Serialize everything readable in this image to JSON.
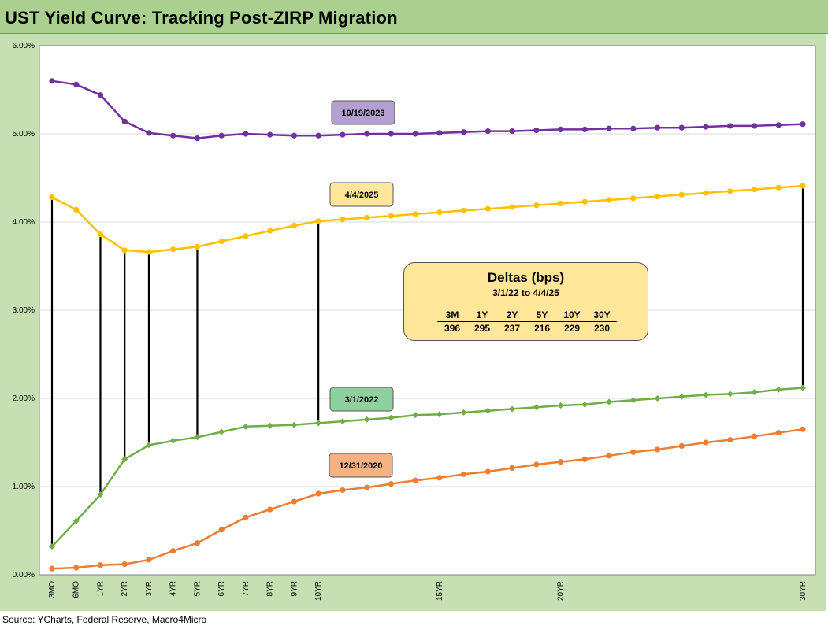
{
  "title": "UST Yield Curve: Tracking Post-ZIRP Migration",
  "source": "Source: YCharts, Federal Reserve, Macro4Micro",
  "chart_data": {
    "type": "line",
    "ylim": [
      0,
      6
    ],
    "yticks": [
      "0.00%",
      "1.00%",
      "2.00%",
      "3.00%",
      "4.00%",
      "5.00%",
      "6.00%"
    ],
    "xlabels": [
      {
        "i": 0,
        "label": "3MO"
      },
      {
        "i": 1,
        "label": "6MO"
      },
      {
        "i": 2,
        "label": "1YR"
      },
      {
        "i": 3,
        "label": "2YR"
      },
      {
        "i": 4,
        "label": "3YR"
      },
      {
        "i": 5,
        "label": "4YR"
      },
      {
        "i": 6,
        "label": "5YR"
      },
      {
        "i": 7,
        "label": "6YR"
      },
      {
        "i": 8,
        "label": "7YR"
      },
      {
        "i": 9,
        "label": "8YR"
      },
      {
        "i": 10,
        "label": "9YR"
      },
      {
        "i": 11,
        "label": "10YR"
      },
      {
        "i": 16,
        "label": "15YR"
      },
      {
        "i": 21,
        "label": "20YR"
      },
      {
        "i": 31,
        "label": "30YR"
      }
    ],
    "series": [
      {
        "name": "10/19/2023",
        "color": "#7030a0",
        "marker": "circle",
        "values": [
          5.6,
          5.56,
          5.44,
          5.14,
          5.01,
          4.98,
          4.95,
          4.98,
          5.0,
          4.99,
          4.98,
          4.98,
          4.99,
          5.0,
          5.0,
          5.0,
          5.01,
          5.02,
          5.03,
          5.03,
          5.04,
          5.05,
          5.05,
          5.06,
          5.06,
          5.07,
          5.07,
          5.08,
          5.09,
          5.09,
          5.1,
          5.11
        ]
      },
      {
        "name": "4/4/2025",
        "color": "#ffc000",
        "marker": "circle",
        "values": [
          4.28,
          4.14,
          3.86,
          3.68,
          3.66,
          3.69,
          3.72,
          3.78,
          3.84,
          3.9,
          3.96,
          4.01,
          4.03,
          4.05,
          4.07,
          4.09,
          4.11,
          4.13,
          4.15,
          4.17,
          4.19,
          4.21,
          4.23,
          4.25,
          4.27,
          4.29,
          4.31,
          4.33,
          4.35,
          4.37,
          4.39,
          4.41
        ]
      },
      {
        "name": "3/1/2022",
        "color": "#70ad47",
        "marker": "diamond",
        "values": [
          0.32,
          0.61,
          0.91,
          1.31,
          1.47,
          1.52,
          1.56,
          1.62,
          1.68,
          1.69,
          1.7,
          1.72,
          1.74,
          1.76,
          1.78,
          1.81,
          1.82,
          1.84,
          1.86,
          1.88,
          1.9,
          1.92,
          1.93,
          1.96,
          1.98,
          2.0,
          2.02,
          2.04,
          2.05,
          2.07,
          2.1,
          2.12
        ]
      },
      {
        "name": "12/31/2020",
        "color": "#ed7d31",
        "marker": "circle",
        "values": [
          0.07,
          0.08,
          0.11,
          0.12,
          0.17,
          0.27,
          0.36,
          0.51,
          0.65,
          0.74,
          0.83,
          0.92,
          0.96,
          0.99,
          1.03,
          1.07,
          1.1,
          1.14,
          1.17,
          1.21,
          1.25,
          1.28,
          1.31,
          1.35,
          1.39,
          1.42,
          1.46,
          1.5,
          1.53,
          1.57,
          1.61,
          1.65
        ]
      }
    ],
    "connectors": [
      0,
      2,
      3,
      4,
      6,
      11,
      31
    ],
    "deltas": {
      "title": "Deltas (bps)",
      "subtitle": "3/1/22  to 4/4/25",
      "headers": [
        "3M",
        "1Y",
        "2Y",
        "5Y",
        "10Y",
        "30Y"
      ],
      "values": [
        "396",
        "295",
        "237",
        "216",
        "229",
        "230"
      ]
    }
  }
}
